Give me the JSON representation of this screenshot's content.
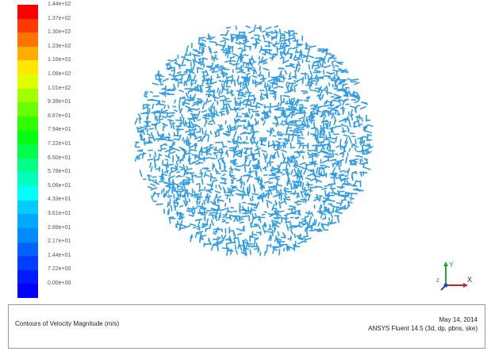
{
  "legend": {
    "colors": [
      "#ff0000",
      "#ff3a00",
      "#ff7400",
      "#ffae00",
      "#ffe800",
      "#ddff00",
      "#a3ff00",
      "#69ff00",
      "#2fff00",
      "#00ff10",
      "#00ff4a",
      "#00ff84",
      "#00ffbe",
      "#00fff8",
      "#00ccff",
      "#00a8ff",
      "#008bff",
      "#0063ff",
      "#003fff",
      "#001bff",
      "#0000ff"
    ],
    "labels": [
      "1.44e+02",
      "1.37e+02",
      "1.30e+02",
      "1.23e+02",
      "1.16e+02",
      "1.08e+02",
      "1.01e+02",
      "9.39e+01",
      "8.67e+01",
      "7.94e+01",
      "7.22e+01",
      "6.50e+01",
      "5.78e+01",
      "5.06e+01",
      "4.33e+01",
      "3.61e+01",
      "2.89e+01",
      "2.17e+01",
      "1.44e+01",
      "7.22e+00",
      "0.00e+00"
    ]
  },
  "plot": {
    "contour_color": "#2e9be6",
    "background_color": "#ffffff"
  },
  "axes": {
    "y_label": "Y",
    "x_label": "X",
    "z_label": "Z",
    "y_color": "#22aa22",
    "x_color": "#cc2222",
    "z_color": "#2244cc"
  },
  "info": {
    "title": "Contours of Velocity Magnitude (m/s)",
    "date": "May 14, 2014",
    "solver": "ANSYS Fluent 14.5 (3d, dp, pbns, ske)"
  }
}
